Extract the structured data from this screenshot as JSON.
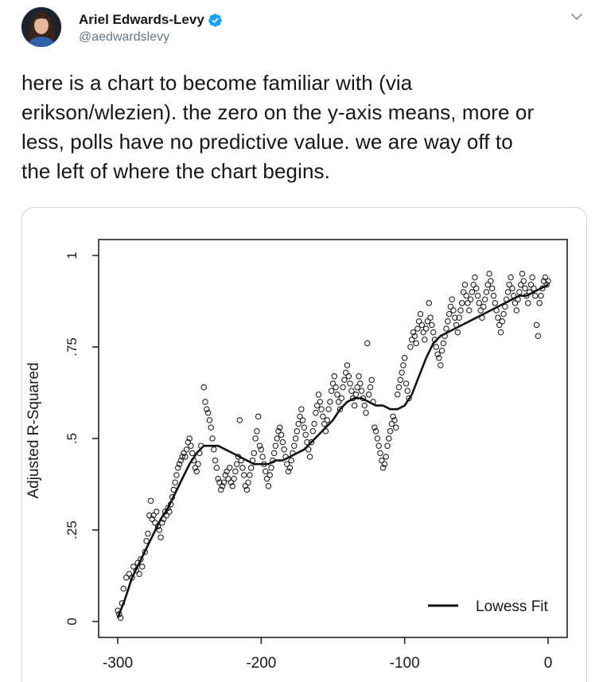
{
  "author": {
    "name": "Ariel Edwards-Levy",
    "handle": "@aedwardslevy",
    "verified": true
  },
  "icons": {
    "avatar": "avatar-photo",
    "verified": "verified-badge-icon",
    "caret": "chevron-down-icon"
  },
  "colors": {
    "verified_blue": "#1da1f2",
    "handle_gray": "#657786",
    "border": "#ccd6dd"
  },
  "tweet": {
    "lines": [
      "here is a chart to become familiar with (via",
      "erikson/wlezien). the zero on the y-axis means, more or",
      "less, polls have no predictive value. we are way off to",
      "the left of where the chart begins."
    ]
  },
  "chart_data": {
    "type": "scatter",
    "ylabel": "Adjusted R-Squared",
    "xlabel": "",
    "xlim": [
      -300,
      0
    ],
    "ylim": [
      0,
      1
    ],
    "x_ticks": [
      -300,
      -200,
      -100,
      0
    ],
    "x_tick_labels": [
      "-300",
      "-200",
      "-100",
      "0"
    ],
    "y_ticks": [
      0,
      0.25,
      0.5,
      0.75,
      1
    ],
    "y_tick_labels": [
      "0",
      ".25",
      ".5",
      ".75",
      "1"
    ],
    "legend": {
      "label": "Lowess Fit",
      "placement": "bottom-right"
    },
    "lowess_fit": {
      "x": [
        -300,
        -295,
        -290,
        -285,
        -280,
        -275,
        -270,
        -265,
        -260,
        -255,
        -250,
        -245,
        -240,
        -235,
        -230,
        -225,
        -220,
        -215,
        -210,
        -205,
        -200,
        -195,
        -190,
        -185,
        -180,
        -175,
        -170,
        -165,
        -160,
        -155,
        -150,
        -145,
        -140,
        -135,
        -130,
        -125,
        -120,
        -115,
        -110,
        -105,
        -100,
        -95,
        -90,
        -85,
        -80,
        -75,
        -70,
        -65,
        -60,
        -55,
        -50,
        -45,
        -40,
        -35,
        -30,
        -25,
        -20,
        -15,
        -10,
        -5,
        0
      ],
      "y": [
        0.01,
        0.06,
        0.12,
        0.16,
        0.2,
        0.24,
        0.28,
        0.31,
        0.35,
        0.39,
        0.43,
        0.46,
        0.48,
        0.48,
        0.48,
        0.47,
        0.46,
        0.45,
        0.44,
        0.43,
        0.43,
        0.43,
        0.44,
        0.44,
        0.45,
        0.46,
        0.47,
        0.49,
        0.51,
        0.53,
        0.55,
        0.58,
        0.6,
        0.61,
        0.61,
        0.6,
        0.59,
        0.59,
        0.58,
        0.58,
        0.59,
        0.62,
        0.67,
        0.72,
        0.76,
        0.78,
        0.79,
        0.8,
        0.81,
        0.82,
        0.83,
        0.84,
        0.85,
        0.86,
        0.87,
        0.88,
        0.89,
        0.89,
        0.9,
        0.91,
        0.92
      ]
    },
    "points": [
      [
        -300,
        0.03
      ],
      [
        -299,
        0.02
      ],
      [
        -298,
        0.01
      ],
      [
        -297,
        0.05
      ],
      [
        -296,
        0.09
      ],
      [
        -294,
        0.12
      ],
      [
        -292,
        0.13
      ],
      [
        -290,
        0.12
      ],
      [
        -289,
        0.15
      ],
      [
        -287,
        0.14
      ],
      [
        -286,
        0.16
      ],
      [
        -285,
        0.13
      ],
      [
        -284,
        0.17
      ],
      [
        -283,
        0.15
      ],
      [
        -281,
        0.19
      ],
      [
        -280,
        0.22
      ],
      [
        -279,
        0.24
      ],
      [
        -278,
        0.29
      ],
      [
        -277,
        0.33
      ],
      [
        -276,
        0.28
      ],
      [
        -275,
        0.29
      ],
      [
        -274,
        0.27
      ],
      [
        -273,
        0.3
      ],
      [
        -272,
        0.26
      ],
      [
        -271,
        0.25
      ],
      [
        -270,
        0.23
      ],
      [
        -269,
        0.27
      ],
      [
        -268,
        0.28
      ],
      [
        -267,
        0.3
      ],
      [
        -266,
        0.29
      ],
      [
        -265,
        0.31
      ],
      [
        -264,
        0.3
      ],
      [
        -263,
        0.32
      ],
      [
        -262,
        0.34
      ],
      [
        -261,
        0.36
      ],
      [
        -260,
        0.38
      ],
      [
        -259,
        0.4
      ],
      [
        -258,
        0.42
      ],
      [
        -257,
        0.43
      ],
      [
        -256,
        0.44
      ],
      [
        -255,
        0.45
      ],
      [
        -254,
        0.46
      ],
      [
        -253,
        0.45
      ],
      [
        -252,
        0.47
      ],
      [
        -251,
        0.49
      ],
      [
        -250,
        0.5
      ],
      [
        -249,
        0.48
      ],
      [
        -248,
        0.46
      ],
      [
        -247,
        0.44
      ],
      [
        -246,
        0.42
      ],
      [
        -245,
        0.41
      ],
      [
        -244,
        0.43
      ],
      [
        -243,
        0.46
      ],
      [
        -242,
        0.48
      ],
      [
        -240,
        0.64
      ],
      [
        -239,
        0.6
      ],
      [
        -238,
        0.58
      ],
      [
        -237,
        0.57
      ],
      [
        -236,
        0.55
      ],
      [
        -235,
        0.53
      ],
      [
        -234,
        0.5
      ],
      [
        -233,
        0.47
      ],
      [
        -232,
        0.44
      ],
      [
        -231,
        0.42
      ],
      [
        -230,
        0.39
      ],
      [
        -229,
        0.38
      ],
      [
        -228,
        0.36
      ],
      [
        -227,
        0.37
      ],
      [
        -226,
        0.38
      ],
      [
        -225,
        0.4
      ],
      [
        -224,
        0.41
      ],
      [
        -223,
        0.39
      ],
      [
        -222,
        0.42
      ],
      [
        -221,
        0.38
      ],
      [
        -220,
        0.37
      ],
      [
        -219,
        0.39
      ],
      [
        -218,
        0.41
      ],
      [
        -217,
        0.43
      ],
      [
        -216,
        0.45
      ],
      [
        -215,
        0.55
      ],
      [
        -214,
        0.44
      ],
      [
        -213,
        0.42
      ],
      [
        -212,
        0.4
      ],
      [
        -211,
        0.37
      ],
      [
        -210,
        0.36
      ],
      [
        -209,
        0.38
      ],
      [
        -208,
        0.4
      ],
      [
        -207,
        0.42
      ],
      [
        -206,
        0.44
      ],
      [
        -205,
        0.46
      ],
      [
        -204,
        0.5
      ],
      [
        -203,
        0.52
      ],
      [
        -202,
        0.56
      ],
      [
        -201,
        0.48
      ],
      [
        -200,
        0.47
      ],
      [
        -199,
        0.45
      ],
      [
        -198,
        0.43
      ],
      [
        -197,
        0.41
      ],
      [
        -196,
        0.39
      ],
      [
        -195,
        0.37
      ],
      [
        -194,
        0.4
      ],
      [
        -193,
        0.42
      ],
      [
        -192,
        0.44
      ],
      [
        -191,
        0.46
      ],
      [
        -190,
        0.48
      ],
      [
        -189,
        0.5
      ],
      [
        -188,
        0.52
      ],
      [
        -187,
        0.53
      ],
      [
        -186,
        0.51
      ],
      [
        -185,
        0.49
      ],
      [
        -184,
        0.47
      ],
      [
        -183,
        0.45
      ],
      [
        -182,
        0.43
      ],
      [
        -181,
        0.41
      ],
      [
        -180,
        0.42
      ],
      [
        -179,
        0.44
      ],
      [
        -178,
        0.46
      ],
      [
        -177,
        0.48
      ],
      [
        -176,
        0.5
      ],
      [
        -175,
        0.52
      ],
      [
        -174,
        0.54
      ],
      [
        -173,
        0.56
      ],
      [
        -172,
        0.58
      ],
      [
        -171,
        0.55
      ],
      [
        -170,
        0.53
      ],
      [
        -169,
        0.51
      ],
      [
        -168,
        0.49
      ],
      [
        -167,
        0.47
      ],
      [
        -166,
        0.45
      ],
      [
        -165,
        0.49
      ],
      [
        -164,
        0.52
      ],
      [
        -163,
        0.54
      ],
      [
        -162,
        0.57
      ],
      [
        -161,
        0.59
      ],
      [
        -160,
        0.62
      ],
      [
        -159,
        0.6
      ],
      [
        -158,
        0.58
      ],
      [
        -157,
        0.56
      ],
      [
        -156,
        0.54
      ],
      [
        -155,
        0.52
      ],
      [
        -154,
        0.55
      ],
      [
        -153,
        0.58
      ],
      [
        -152,
        0.6
      ],
      [
        -151,
        0.63
      ],
      [
        -150,
        0.65
      ],
      [
        -149,
        0.67
      ],
      [
        -148,
        0.64
      ],
      [
        -147,
        0.62
      ],
      [
        -146,
        0.6
      ],
      [
        -145,
        0.58
      ],
      [
        -144,
        0.61
      ],
      [
        -143,
        0.64
      ],
      [
        -142,
        0.66
      ],
      [
        -141,
        0.68
      ],
      [
        -140,
        0.7
      ],
      [
        -139,
        0.67
      ],
      [
        -138,
        0.65
      ],
      [
        -137,
        0.63
      ],
      [
        -136,
        0.61
      ],
      [
        -135,
        0.59
      ],
      [
        -134,
        0.62
      ],
      [
        -133,
        0.64
      ],
      [
        -132,
        0.67
      ],
      [
        -131,
        0.65
      ],
      [
        -130,
        0.63
      ],
      [
        -129,
        0.61
      ],
      [
        -128,
        0.59
      ],
      [
        -127,
        0.57
      ],
      [
        -126,
        0.76
      ],
      [
        -125,
        0.62
      ],
      [
        -124,
        0.64
      ],
      [
        -123,
        0.66
      ],
      [
        -122,
        0.6
      ],
      [
        -121,
        0.53
      ],
      [
        -120,
        0.52
      ],
      [
        -119,
        0.5
      ],
      [
        -118,
        0.48
      ],
      [
        -117,
        0.46
      ],
      [
        -116,
        0.44
      ],
      [
        -115,
        0.42
      ],
      [
        -114,
        0.43
      ],
      [
        -113,
        0.45
      ],
      [
        -112,
        0.48
      ],
      [
        -111,
        0.5
      ],
      [
        -110,
        0.52
      ],
      [
        -109,
        0.54
      ],
      [
        -108,
        0.56
      ],
      [
        -107,
        0.55
      ],
      [
        -106,
        0.53
      ],
      [
        -105,
        0.62
      ],
      [
        -104,
        0.64
      ],
      [
        -103,
        0.66
      ],
      [
        -102,
        0.68
      ],
      [
        -101,
        0.7
      ],
      [
        -100,
        0.72
      ],
      [
        -99,
        0.65
      ],
      [
        -98,
        0.63
      ],
      [
        -97,
        0.61
      ],
      [
        -96,
        0.75
      ],
      [
        -95,
        0.77
      ],
      [
        -94,
        0.79
      ],
      [
        -93,
        0.78
      ],
      [
        -92,
        0.76
      ],
      [
        -91,
        0.8
      ],
      [
        -90,
        0.82
      ],
      [
        -89,
        0.84
      ],
      [
        -88,
        0.81
      ],
      [
        -87,
        0.79
      ],
      [
        -86,
        0.77
      ],
      [
        -85,
        0.8
      ],
      [
        -84,
        0.82
      ],
      [
        -83,
        0.87
      ],
      [
        -82,
        0.83
      ],
      [
        -81,
        0.81
      ],
      [
        -80,
        0.79
      ],
      [
        -79,
        0.77
      ],
      [
        -78,
        0.75
      ],
      [
        -77,
        0.73
      ],
      [
        -76,
        0.72
      ],
      [
        -75,
        0.7
      ],
      [
        -74,
        0.74
      ],
      [
        -73,
        0.76
      ],
      [
        -72,
        0.78
      ],
      [
        -71,
        0.8
      ],
      [
        -70,
        0.82
      ],
      [
        -69,
        0.84
      ],
      [
        -68,
        0.86
      ],
      [
        -67,
        0.88
      ],
      [
        -66,
        0.85
      ],
      [
        -65,
        0.83
      ],
      [
        -64,
        0.81
      ],
      [
        -63,
        0.79
      ],
      [
        -62,
        0.83
      ],
      [
        -61,
        0.85
      ],
      [
        -60,
        0.87
      ],
      [
        -59,
        0.9
      ],
      [
        -58,
        0.92
      ],
      [
        -57,
        0.89
      ],
      [
        -56,
        0.87
      ],
      [
        -55,
        0.85
      ],
      [
        -54,
        0.88
      ],
      [
        -53,
        0.9
      ],
      [
        -52,
        0.92
      ],
      [
        -51,
        0.94
      ],
      [
        -50,
        0.91
      ],
      [
        -49,
        0.89
      ],
      [
        -48,
        0.87
      ],
      [
        -47,
        0.85
      ],
      [
        -46,
        0.83
      ],
      [
        -45,
        0.86
      ],
      [
        -44,
        0.88
      ],
      [
        -43,
        0.9
      ],
      [
        -42,
        0.92
      ],
      [
        -41,
        0.95
      ],
      [
        -40,
        0.93
      ],
      [
        -39,
        0.91
      ],
      [
        -38,
        0.89
      ],
      [
        -37,
        0.87
      ],
      [
        -36,
        0.85
      ],
      [
        -35,
        0.83
      ],
      [
        -34,
        0.81
      ],
      [
        -33,
        0.79
      ],
      [
        -32,
        0.82
      ],
      [
        -31,
        0.84
      ],
      [
        -30,
        0.86
      ],
      [
        -29,
        0.88
      ],
      [
        -28,
        0.9
      ],
      [
        -27,
        0.92
      ],
      [
        -26,
        0.94
      ],
      [
        -25,
        0.91
      ],
      [
        -24,
        0.89
      ],
      [
        -23,
        0.87
      ],
      [
        -22,
        0.85
      ],
      [
        -21,
        0.88
      ],
      [
        -20,
        0.9
      ],
      [
        -19,
        0.92
      ],
      [
        -18,
        0.95
      ],
      [
        -17,
        0.93
      ],
      [
        -16,
        0.91
      ],
      [
        -15,
        0.89
      ],
      [
        -14,
        0.87
      ],
      [
        -13,
        0.9
      ],
      [
        -12,
        0.92
      ],
      [
        -11,
        0.94
      ],
      [
        -10,
        0.91
      ],
      [
        -9,
        0.89
      ],
      [
        -8,
        0.81
      ],
      [
        -7,
        0.78
      ],
      [
        -6,
        0.87
      ],
      [
        -5,
        0.89
      ],
      [
        -4,
        0.91
      ],
      [
        -3,
        0.93
      ],
      [
        -2,
        0.94
      ],
      [
        -1,
        0.92
      ],
      [
        0,
        0.93
      ]
    ]
  }
}
